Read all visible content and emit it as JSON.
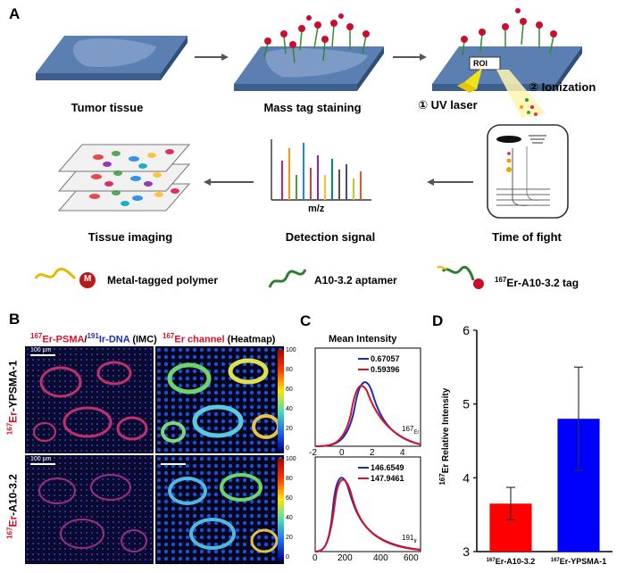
{
  "panels": {
    "a": "A",
    "b": "B",
    "c": "C",
    "d": "D"
  },
  "schematic": {
    "steps": [
      "Tumor tissue",
      "Mass tag staining",
      "Time of fight",
      "Detection signal",
      "Tissue imaging"
    ],
    "roi": "ROI",
    "uv_laser": "① UV laser",
    "ionization": "② Ionization",
    "mz": "m/z"
  },
  "legend": {
    "polymer": "Metal-tagged polymer",
    "polymer_symbol": "M",
    "aptamer": "A10-3.2 aptamer",
    "tag_sup": "167",
    "tag_rest": "Er-A10-3.2 tag"
  },
  "panel_b": {
    "title_sup1": "167",
    "title_er": "Er-PSMA",
    "title_slash": "/",
    "title_sup2": "191",
    "title_ir": "Ir-DNA",
    "title_imc": " (IMC)",
    "title2_sup": "167",
    "title2_er": "Er channel",
    "title2_heat": " (Heatmap)",
    "row1_sup": "167",
    "row1_er": "Er",
    "row1_rest": "-YPSMA-1",
    "row2_sup": "167",
    "row2_er": "Er",
    "row2_rest": "-A10-3.2",
    "scalebar1": "100 μm",
    "scalebar2": "100 μm",
    "colorbar_ticks": [
      "100",
      "80",
      "60",
      "40",
      "20",
      "0"
    ],
    "colorbar_ticks2": [
      "100",
      "80",
      "60",
      "40",
      "20",
      "0"
    ]
  },
  "panel_c": {
    "title": "Mean Intensity",
    "top": {
      "legend": [
        "0.67057",
        "0.59396"
      ],
      "channel_sup": "167",
      "channel": "Er",
      "xticks": [
        "-2",
        "0",
        "2",
        "4"
      ]
    },
    "bottom": {
      "legend": [
        "146.6549",
        "147.9461"
      ],
      "channel_sup": "191",
      "channel": "Ir",
      "xticks": [
        "0",
        "200",
        "400",
        "600"
      ]
    },
    "colors": [
      "#1c2fb0",
      "#d8102a"
    ]
  },
  "chart_data": {
    "type": "bar",
    "categories": [
      "167Er-A10-3.2",
      "167Er-YPSMA-1"
    ],
    "category_labels": [
      {
        "sup": "167",
        "rest": "Er-A10-3.2"
      },
      {
        "sup": "167",
        "rest": "Er-YPSMA-1"
      }
    ],
    "values": [
      3.65,
      4.8
    ],
    "errors": [
      0.22,
      0.7
    ],
    "colors": [
      "#ff0000",
      "#0000ff"
    ],
    "ylabel_sup": "167",
    "ylabel": "Er Relative Intensity",
    "ylim": [
      3,
      6
    ],
    "yticks": [
      "3",
      "4",
      "5",
      "6"
    ]
  }
}
